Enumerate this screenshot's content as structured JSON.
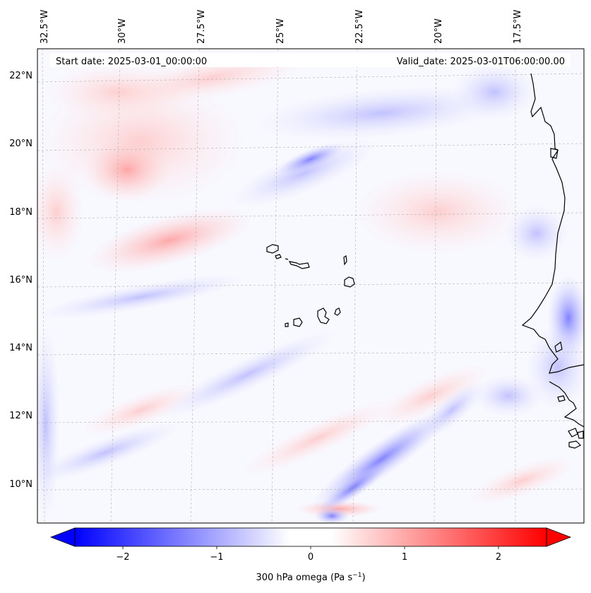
{
  "map": {
    "start_date_label": "Start date: 2025-03-01_00:00:00",
    "valid_date_label": "Valid_date: 2025-03-01T06:00:00.00",
    "lon_labels": [
      "32.5°W",
      "30°W",
      "27.5°W",
      "25°W",
      "22.5°W",
      "20°W",
      "17.5°W"
    ],
    "lat_labels": [
      "22°N",
      "20°N",
      "18°N",
      "16°N",
      "14°N",
      "12°N",
      "10°N"
    ]
  },
  "colorbar": {
    "ticks": [
      "−2",
      "−1",
      "0",
      "1",
      "2"
    ],
    "label_main": "300 hPa omega (Pa s",
    "label_exp": "−1",
    "label_close": ")",
    "low_color": "#0000ff",
    "mid_color": "#ffffff",
    "high_color": "#ff0000"
  },
  "colors": {
    "coast": "#000000",
    "grid": "#b0b0b0"
  }
}
